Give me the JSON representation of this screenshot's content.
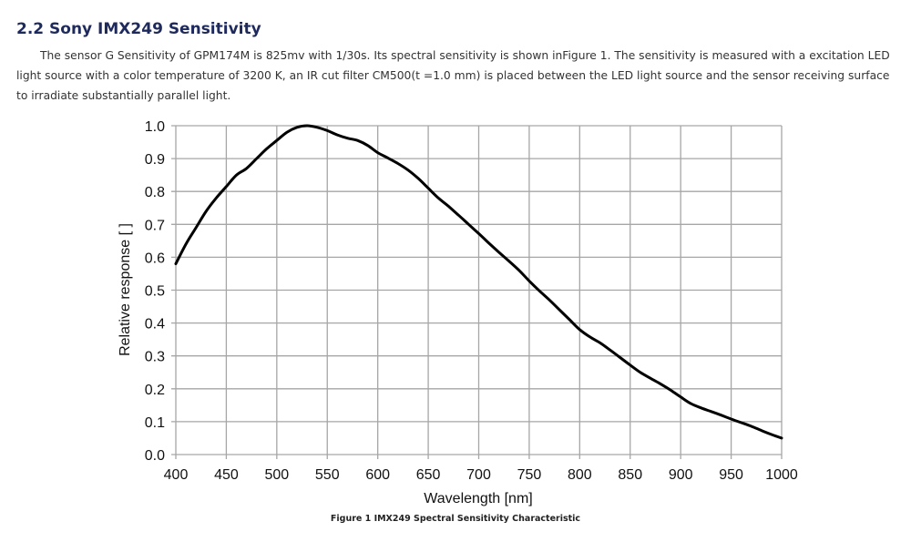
{
  "section": {
    "title": "2.2 Sony IMX249 Sensitivity",
    "paragraph": "The sensor G Sensitivity of GPM174M is 825mv with 1/30s. Its spectral sensitivity is shown inFigure 1. The sensitivity is measured with a excitation LED light source with a color temperature of 3200 K, an IR cut filter CM500(t =1.0 mm) is placed between the LED light source and the sensor receiving surface to irradiate substantially parallel light."
  },
  "figure": {
    "caption": "Figure 1 IMX249 Spectral Sensitivity Characteristic"
  },
  "chart_data": {
    "type": "line",
    "title": "",
    "xlabel": "Wavelength [nm]",
    "ylabel": "Relative response [ ]",
    "xlim": [
      400,
      1000
    ],
    "ylim": [
      0.0,
      1.0
    ],
    "grid": true,
    "legend": "none",
    "line_color": "#000000",
    "grid_color": "#a6a6a6",
    "xticks": [
      "400",
      "450",
      "500",
      "550",
      "600",
      "650",
      "700",
      "750",
      "800",
      "850",
      "900",
      "950",
      "1000"
    ],
    "yticks": [
      "0.0",
      "0.1",
      "0.2",
      "0.3",
      "0.4",
      "0.5",
      "0.6",
      "0.7",
      "0.8",
      "0.9",
      "1.0"
    ],
    "series": [
      {
        "name": "IMX249",
        "x": [
          400,
          410,
          420,
          430,
          440,
          450,
          460,
          470,
          480,
          490,
          500,
          510,
          520,
          530,
          540,
          550,
          560,
          570,
          580,
          590,
          600,
          610,
          620,
          630,
          640,
          650,
          660,
          670,
          680,
          690,
          700,
          710,
          720,
          730,
          740,
          750,
          760,
          770,
          780,
          790,
          800,
          810,
          820,
          830,
          840,
          850,
          860,
          870,
          880,
          890,
          900,
          910,
          920,
          930,
          940,
          950,
          960,
          970,
          980,
          990,
          1000
        ],
        "values": [
          0.58,
          0.64,
          0.69,
          0.74,
          0.78,
          0.815,
          0.85,
          0.87,
          0.9,
          0.93,
          0.955,
          0.98,
          0.995,
          1.0,
          0.995,
          0.985,
          0.972,
          0.962,
          0.955,
          0.94,
          0.918,
          0.902,
          0.885,
          0.865,
          0.84,
          0.81,
          0.78,
          0.755,
          0.728,
          0.7,
          0.672,
          0.643,
          0.615,
          0.588,
          0.56,
          0.528,
          0.498,
          0.47,
          0.44,
          0.41,
          0.38,
          0.358,
          0.34,
          0.318,
          0.295,
          0.272,
          0.25,
          0.232,
          0.215,
          0.196,
          0.175,
          0.155,
          0.142,
          0.131,
          0.12,
          0.108,
          0.097,
          0.086,
          0.073,
          0.061,
          0.05
        ]
      }
    ]
  }
}
